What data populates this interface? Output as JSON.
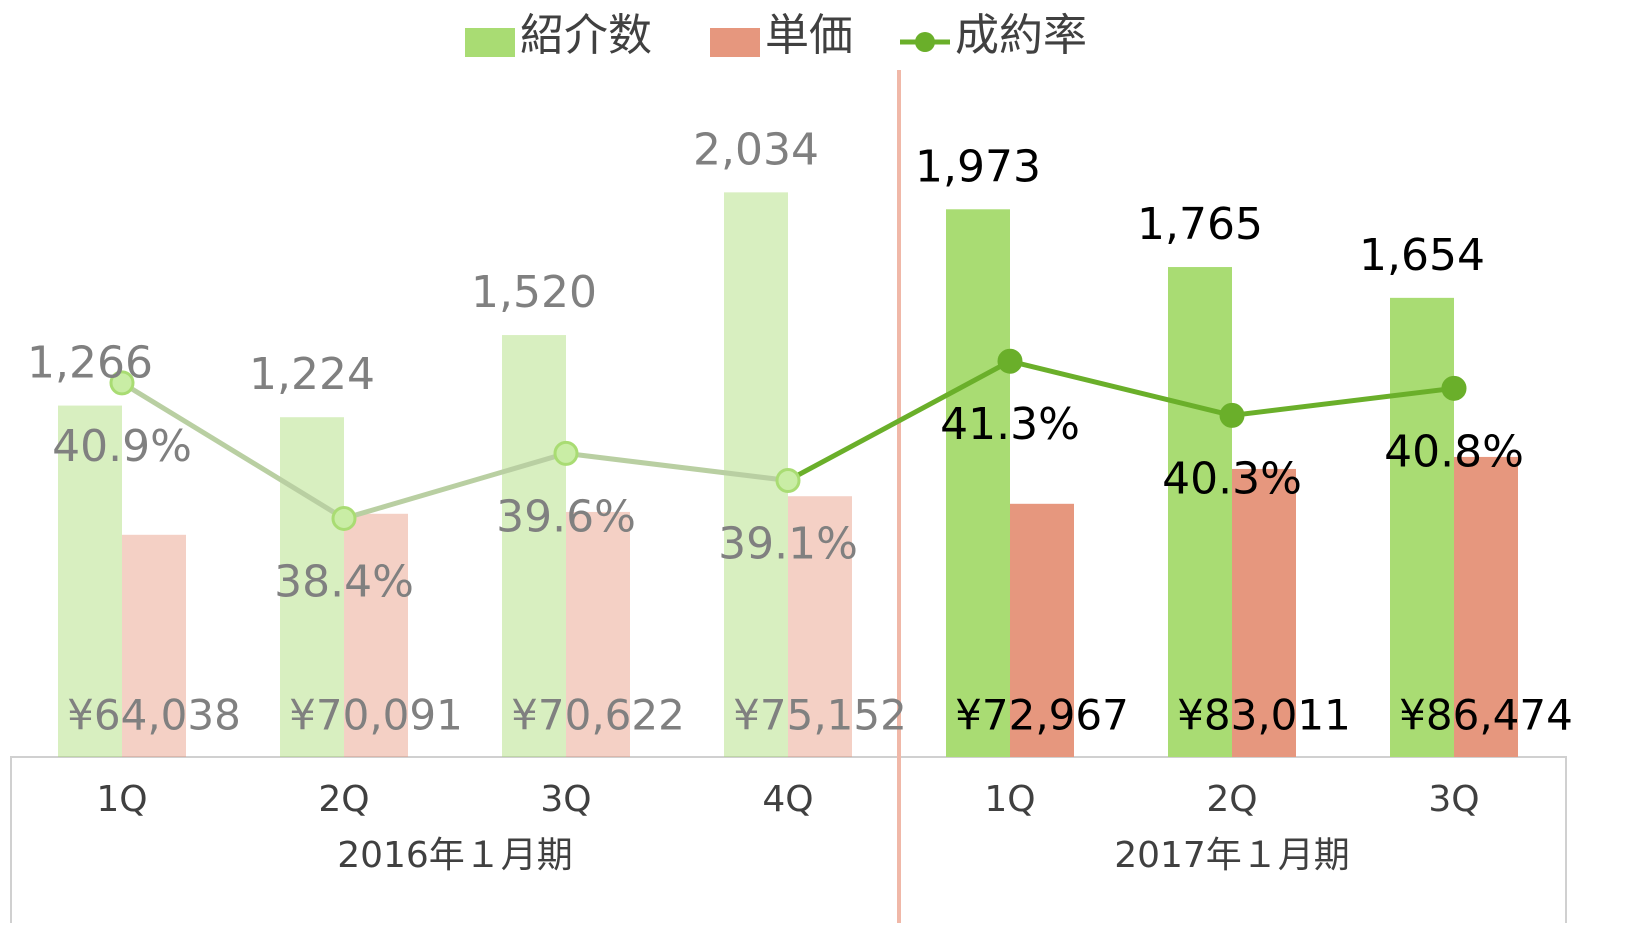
{
  "chart_data": {
    "type": "bar-line",
    "groups": [
      {
        "label": "2016年１月期",
        "categories": [
          "1Q",
          "2Q",
          "3Q",
          "4Q"
        ],
        "faded": true
      },
      {
        "label": "2017年１月期",
        "categories": [
          "1Q",
          "2Q",
          "3Q"
        ],
        "faded": false
      }
    ],
    "series": [
      {
        "name": "紹介数",
        "type": "bar",
        "color": "#a9dc73",
        "axis": "y",
        "values": [
          1266,
          1224,
          1520,
          2034,
          1973,
          1765,
          1654
        ],
        "value_labels": [
          "1,266",
          "1,224",
          "1,520",
          "2,034",
          "1,973",
          "1,765",
          "1,654"
        ]
      },
      {
        "name": "単価",
        "type": "bar",
        "color": "#e6977e",
        "axis": "y2",
        "values": [
          64038,
          70091,
          70622,
          75152,
          72967,
          83011,
          86474
        ],
        "value_labels": [
          "¥64,038",
          "¥70,091",
          "¥70,622",
          "¥75,152",
          "¥72,967",
          "¥83,011",
          "¥86,474"
        ]
      },
      {
        "name": "成約率",
        "type": "line",
        "color": "#6aaf2a",
        "axis": "y3",
        "values": [
          40.9,
          38.4,
          39.6,
          39.1,
          41.3,
          40.3,
          40.8
        ],
        "value_labels": [
          "40.9%",
          "38.4%",
          "39.6%",
          "39.1%",
          "41.3%",
          "40.3%",
          "40.8%"
        ]
      }
    ],
    "ylim": [
      0,
      2500
    ],
    "y2lim": [
      0,
      200000
    ],
    "y3lim": [
      34,
      46.8
    ],
    "legend": "top"
  }
}
